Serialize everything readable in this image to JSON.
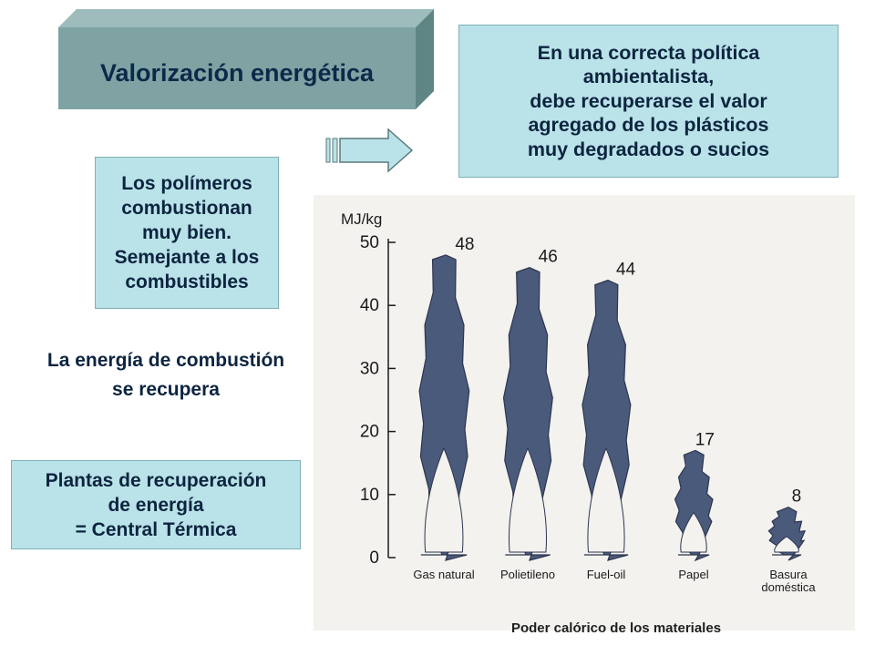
{
  "title": "Valorización energética",
  "policy_box": {
    "lines": [
      "En una correcta política",
      "ambientalista,",
      "debe recuperarse el valor",
      "agregado de los plásticos",
      "muy degradados o sucios"
    ]
  },
  "polymers_box": {
    "lines": [
      "Los polímeros",
      "combustionan",
      "muy bien.",
      "Semejante a los",
      "combustibles"
    ]
  },
  "energy_text": {
    "lines": [
      "La energía de combustión",
      "se recupera"
    ]
  },
  "plants_box": {
    "lines": [
      "Plantas de recuperación",
      "de energía",
      "= Central Térmica"
    ]
  },
  "colors": {
    "title_box": "#7fa3a3",
    "boxes": "#b9e3e8",
    "arrow": "#b9e3e8",
    "flame": "#4a5a7a"
  },
  "chart_data": {
    "type": "bar",
    "ylabel": "MJ/kg",
    "xlabel": "Poder calórico de los materiales",
    "ylim": [
      0,
      50
    ],
    "yticks": [
      0,
      10,
      20,
      30,
      40,
      50
    ],
    "categories": [
      "Gas natural",
      "Polietileno",
      "Fuel-oil",
      "Papel",
      "Basura doméstica"
    ],
    "category_lines": [
      [
        "Gas natural"
      ],
      [
        "Polietileno"
      ],
      [
        "Fuel-oil"
      ],
      [
        "Papel"
      ],
      [
        "Basura",
        "doméstica"
      ]
    ],
    "values": [
      48,
      46,
      44,
      17,
      8
    ],
    "mark_style": "flame"
  }
}
